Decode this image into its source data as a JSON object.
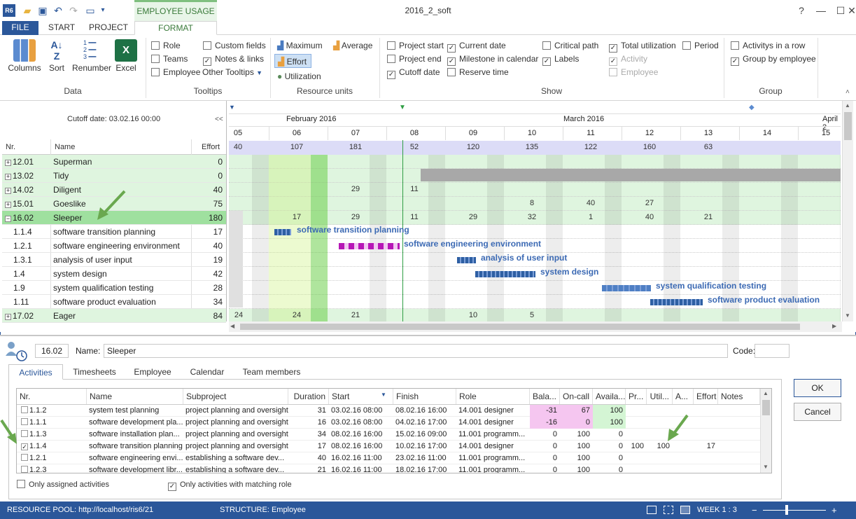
{
  "window": {
    "title": "2016_2_soft",
    "context_tab": "EMPLOYEE USAGE",
    "buttons": [
      "?",
      "—",
      "☐",
      "✕"
    ]
  },
  "ribbon_tabs": {
    "file": "FILE",
    "start": "START",
    "project": "PROJECT",
    "format": "FORMAT"
  },
  "ribbon": {
    "data_group": {
      "label": "Data",
      "columns": "Columns",
      "sort": "Sort",
      "renumber": "Renumber",
      "excel": "Excel"
    },
    "tooltips_group": {
      "label": "Tooltips",
      "role": "Role",
      "teams": "Teams",
      "employee": "Employee",
      "custom_fields": "Custom fields",
      "notes_links": "Notes & links",
      "other_tooltips": "Other Tooltips"
    },
    "resource_units_group": {
      "label": "Resource units",
      "maximum": "Maximum",
      "average": "Average",
      "effort": "Effort",
      "utilization": "Utilization"
    },
    "show_group": {
      "label": "Show",
      "project_start": "Project start",
      "project_end": "Project end",
      "cutoff_date": "Cutoff date",
      "current_date": "Current date",
      "milestone_calendar": "Milestone in calendar",
      "reserve_time": "Reserve time",
      "critical_path": "Critical path",
      "labels": "Labels",
      "total_utilization": "Total utilization",
      "activity": "Activity",
      "employee": "Employee",
      "period": "Period"
    },
    "group_group": {
      "label": "Group",
      "activities_row": "Activitys in a row",
      "group_by_employee": "Group by employee"
    }
  },
  "grid": {
    "cutoff": "Cutoff date: 03.02.16 00:00",
    "collapse": "<<",
    "headers": {
      "nr": "Nr.",
      "name": "Name",
      "effort": "Effort"
    },
    "rows": [
      {
        "nr": "12.01",
        "name": "Superman",
        "effort": "0",
        "type": "res",
        "sign": "+"
      },
      {
        "nr": "13.02",
        "name": "Tidy",
        "effort": "0",
        "type": "res",
        "sign": "+"
      },
      {
        "nr": "14.02",
        "name": "Diligent",
        "effort": "40",
        "type": "res",
        "sign": "+"
      },
      {
        "nr": "15.01",
        "name": "Goeslike",
        "effort": "75",
        "type": "res",
        "sign": "+"
      },
      {
        "nr": "16.02",
        "name": "Sleeper",
        "effort": "180",
        "type": "sel",
        "sign": "−"
      },
      {
        "nr": "1.1.4",
        "name": "software transition planning",
        "effort": "17",
        "type": "act",
        "sign": ""
      },
      {
        "nr": "1.2.1",
        "name": "software engineering environment",
        "effort": "40",
        "type": "act",
        "sign": ""
      },
      {
        "nr": "1.3.1",
        "name": "analysis of user input",
        "effort": "19",
        "type": "act",
        "sign": ""
      },
      {
        "nr": "1.4",
        "name": "system design",
        "effort": "42",
        "type": "act",
        "sign": ""
      },
      {
        "nr": "1.9",
        "name": "system qualification testing",
        "effort": "28",
        "type": "act",
        "sign": ""
      },
      {
        "nr": "1.11",
        "name": "software product evaluation",
        "effort": "34",
        "type": "act",
        "sign": ""
      },
      {
        "nr": "17.02",
        "name": "Eager",
        "effort": "84",
        "type": "res",
        "sign": "+"
      }
    ]
  },
  "timeline": {
    "months": {
      "feb": "February 2016",
      "mar": "March 2016",
      "apr": "April 2"
    },
    "weeks": [
      "05",
      "06",
      "07",
      "08",
      "09",
      "10",
      "11",
      "12",
      "13",
      "14",
      "15"
    ],
    "totals": [
      "40",
      "107",
      "181",
      "52",
      "120",
      "135",
      "122",
      "160",
      "63"
    ],
    "diligent": [
      "29",
      "11"
    ],
    "goeslike": [
      "8",
      "40",
      "27"
    ],
    "sleeper": [
      "17",
      "29",
      "11",
      "29",
      "32",
      "1",
      "40",
      "21"
    ],
    "eager": [
      "24",
      "24",
      "21",
      "10",
      "5"
    ],
    "bar_labels": [
      "software transition planning",
      "software engineering environment",
      "analysis of user input",
      "system design",
      "system qualification testing",
      "software product evaluation"
    ]
  },
  "detail": {
    "nr": "16.02",
    "name_label": "Name:",
    "name": "Sleeper",
    "code_label": "Code:",
    "tabs": [
      "Activities",
      "Timesheets",
      "Employee",
      "Calendar",
      "Team members"
    ],
    "columns": [
      "Nr.",
      "Name",
      "Subproject",
      "Duration",
      "Start",
      "Finish",
      "Role",
      "Bala...",
      "On-call",
      "Availa...",
      "Pr...",
      "Util...",
      "A...",
      "Effort",
      "Notes"
    ],
    "rows": [
      {
        "nr": "1.1.2",
        "name": "system test planning",
        "sub": "project planning and oversight",
        "dur": "31",
        "start": "03.02.16 08:00",
        "finish": "08.02.16 16:00",
        "role": "14.001 designer",
        "bal": "-31",
        "oncall": "67",
        "avail": "100",
        "pr": "",
        "util": "",
        "a": "",
        "effort": "",
        "checked": false
      },
      {
        "nr": "1.1.1",
        "name": "software development pla...",
        "sub": "project planning and oversight",
        "dur": "16",
        "start": "03.02.16 08:00",
        "finish": "04.02.16 17:00",
        "role": "14.001 designer",
        "bal": "-16",
        "oncall": "0",
        "avail": "100",
        "pr": "",
        "util": "",
        "a": "",
        "effort": "",
        "checked": false
      },
      {
        "nr": "1.1.3",
        "name": "software installation plan...",
        "sub": "project planning and oversight",
        "dur": "34",
        "start": "08.02.16 16:00",
        "finish": "15.02.16 09:00",
        "role": "11.001 programm...",
        "bal": "0",
        "oncall": "100",
        "avail": "0",
        "pr": "",
        "util": "",
        "a": "",
        "effort": "",
        "checked": false
      },
      {
        "nr": "1.1.4",
        "name": "software transition planning",
        "sub": "project planning and oversight",
        "dur": "17",
        "start": "08.02.16 16:00",
        "finish": "10.02.16 17:00",
        "role": "14.001 designer",
        "bal": "0",
        "oncall": "100",
        "avail": "0",
        "pr": "100",
        "util": "100",
        "a": "",
        "effort": "17",
        "checked": true
      },
      {
        "nr": "1.2.1",
        "name": "software engineering envi...",
        "sub": "establishing a software dev...",
        "dur": "40",
        "start": "16.02.16 11:00",
        "finish": "23.02.16 11:00",
        "role": "11.001 programm...",
        "bal": "0",
        "oncall": "100",
        "avail": "0",
        "pr": "",
        "util": "",
        "a": "",
        "effort": "",
        "checked": false
      },
      {
        "nr": "1.2.3",
        "name": "software development libr...",
        "sub": "establishing a software dev...",
        "dur": "21",
        "start": "16.02.16 11:00",
        "finish": "18.02.16 17:00",
        "role": "11.001 programm...",
        "bal": "0",
        "oncall": "100",
        "avail": "0",
        "pr": "",
        "util": "",
        "a": "",
        "effort": "",
        "checked": false
      }
    ],
    "only_assigned": "Only assigned activities",
    "only_matching_role": "Only activities with matching role",
    "ok": "OK",
    "cancel": "Cancel"
  },
  "statusbar": {
    "pool": "RESOURCE POOL: http://localhost/ris6/21",
    "structure": "STRUCTURE: Employee",
    "week": "WEEK 1 : 3",
    "minus": "−",
    "plus": "+"
  },
  "colors": {
    "accent": "#2b579a",
    "resource_row": "#dff5df",
    "selected_row": "#9fe09f",
    "negative": "#f5c6f0",
    "positive": "#d4f5d4"
  }
}
